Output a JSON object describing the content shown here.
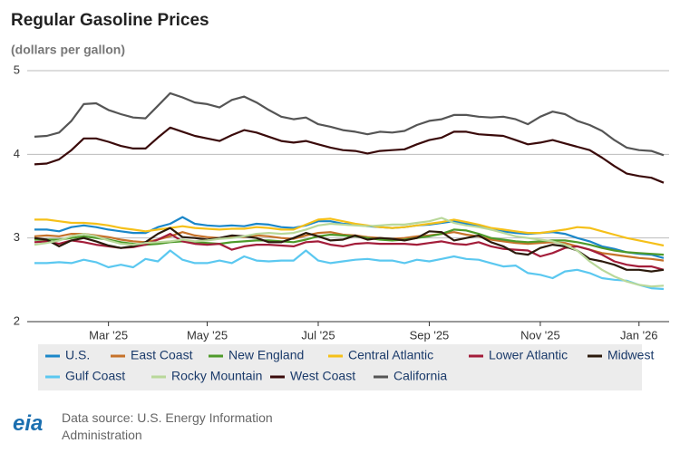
{
  "chart_data": {
    "type": "line",
    "title": "Regular Gasoline Prices",
    "subtitle": "(dollars per gallon)",
    "categories": [
      null,
      null,
      null,
      null,
      null,
      null,
      "Mar '25",
      null,
      null,
      null,
      null,
      null,
      null,
      null,
      "May '25",
      null,
      null,
      null,
      null,
      null,
      null,
      null,
      null,
      "Jul '25",
      null,
      null,
      null,
      null,
      null,
      null,
      null,
      null,
      "Sep '25",
      null,
      null,
      null,
      null,
      null,
      null,
      null,
      null,
      "Nov '25",
      null,
      null,
      null,
      null,
      null,
      null,
      null,
      "Jan '26",
      null,
      null
    ],
    "ylim": [
      2,
      5
    ],
    "yticks": [
      2,
      3,
      4,
      5
    ],
    "grid": true,
    "series": [
      {
        "name": "U.S.",
        "color": "#1b87c9",
        "values": [
          3.1,
          3.1,
          3.08,
          3.13,
          3.15,
          3.13,
          3.1,
          3.08,
          3.06,
          3.06,
          3.13,
          3.17,
          3.25,
          3.17,
          3.15,
          3.14,
          3.15,
          3.14,
          3.17,
          3.16,
          3.13,
          3.12,
          3.15,
          3.2,
          3.2,
          3.17,
          3.16,
          3.14,
          3.13,
          3.12,
          3.13,
          3.15,
          3.16,
          3.18,
          3.2,
          3.17,
          3.15,
          3.1,
          3.08,
          3.06,
          3.05,
          3.06,
          3.07,
          3.05,
          3.0,
          2.96,
          2.9,
          2.87,
          2.83,
          2.81,
          2.8,
          2.76
        ]
      },
      {
        "name": "East Coast",
        "color": "#c6722a",
        "values": [
          3.02,
          3.03,
          3.02,
          3.05,
          3.05,
          3.03,
          3.01,
          2.98,
          2.96,
          2.95,
          2.98,
          3.02,
          3.07,
          3.03,
          3.01,
          3.0,
          3.02,
          3.01,
          3.03,
          3.02,
          3.0,
          2.99,
          3.03,
          3.06,
          3.07,
          3.04,
          3.03,
          3.01,
          3.0,
          2.99,
          3.0,
          3.02,
          3.03,
          3.05,
          3.07,
          3.04,
          3.02,
          2.98,
          2.96,
          2.94,
          2.93,
          2.94,
          2.95,
          2.94,
          2.9,
          2.86,
          2.82,
          2.8,
          2.78,
          2.76,
          2.75,
          2.73
        ]
      },
      {
        "name": "New England",
        "color": "#4e9a2a",
        "values": [
          2.98,
          2.98,
          2.98,
          3.0,
          3.02,
          3.0,
          2.98,
          2.95,
          2.93,
          2.92,
          2.93,
          2.95,
          2.96,
          2.95,
          2.94,
          2.93,
          2.95,
          2.96,
          2.97,
          2.97,
          2.96,
          2.95,
          2.98,
          3.02,
          3.04,
          3.03,
          3.02,
          3.0,
          2.98,
          2.97,
          2.98,
          3.0,
          3.02,
          3.05,
          3.1,
          3.09,
          3.05,
          3.0,
          2.98,
          2.96,
          2.95,
          2.96,
          2.97,
          2.97,
          2.95,
          2.92,
          2.88,
          2.85,
          2.83,
          2.82,
          2.81,
          2.8
        ]
      },
      {
        "name": "Central Atlantic",
        "color": "#f5c019",
        "values": [
          3.22,
          3.22,
          3.2,
          3.18,
          3.18,
          3.17,
          3.15,
          3.12,
          3.1,
          3.08,
          3.1,
          3.12,
          3.14,
          3.12,
          3.11,
          3.1,
          3.11,
          3.11,
          3.13,
          3.12,
          3.1,
          3.1,
          3.16,
          3.22,
          3.23,
          3.2,
          3.17,
          3.15,
          3.13,
          3.12,
          3.13,
          3.15,
          3.17,
          3.19,
          3.22,
          3.19,
          3.16,
          3.12,
          3.1,
          3.08,
          3.06,
          3.06,
          3.08,
          3.1,
          3.13,
          3.12,
          3.08,
          3.04,
          3.0,
          2.97,
          2.94,
          2.91
        ]
      },
      {
        "name": "Lower Atlantic",
        "color": "#a31d3a",
        "values": [
          2.95,
          2.96,
          2.93,
          2.97,
          2.95,
          2.92,
          2.9,
          2.88,
          2.89,
          2.92,
          2.98,
          3.05,
          2.96,
          2.93,
          2.92,
          2.93,
          2.86,
          2.9,
          2.92,
          2.92,
          2.91,
          2.9,
          2.95,
          2.96,
          2.92,
          2.9,
          2.93,
          2.94,
          2.93,
          2.93,
          2.93,
          2.92,
          2.94,
          2.96,
          2.93,
          2.92,
          2.95,
          2.9,
          2.87,
          2.86,
          2.85,
          2.78,
          2.82,
          2.88,
          2.9,
          2.86,
          2.8,
          2.72,
          2.68,
          2.66,
          2.66,
          2.62
        ]
      },
      {
        "name": "Midwest",
        "color": "#2b1a0c",
        "values": [
          3.0,
          2.98,
          2.9,
          2.97,
          3.0,
          2.96,
          2.91,
          2.88,
          2.9,
          2.95,
          3.05,
          3.12,
          3.01,
          3.0,
          2.98,
          3.0,
          3.03,
          3.02,
          3.0,
          2.95,
          2.95,
          3.0,
          3.06,
          3.02,
          2.97,
          2.98,
          3.03,
          2.98,
          3.0,
          2.99,
          2.97,
          3.0,
          3.08,
          3.07,
          2.97,
          3.0,
          3.03,
          2.95,
          2.9,
          2.82,
          2.8,
          2.88,
          2.92,
          2.9,
          2.85,
          2.75,
          2.72,
          2.68,
          2.62,
          2.62,
          2.6,
          2.62
        ]
      },
      {
        "name": "Gulf Coast",
        "color": "#5bc8f0",
        "values": [
          2.7,
          2.7,
          2.71,
          2.7,
          2.74,
          2.71,
          2.65,
          2.68,
          2.65,
          2.75,
          2.72,
          2.85,
          2.74,
          2.7,
          2.7,
          2.73,
          2.7,
          2.78,
          2.73,
          2.72,
          2.73,
          2.73,
          2.85,
          2.73,
          2.7,
          2.72,
          2.74,
          2.75,
          2.73,
          2.73,
          2.7,
          2.74,
          2.72,
          2.75,
          2.78,
          2.75,
          2.74,
          2.7,
          2.66,
          2.67,
          2.58,
          2.56,
          2.52,
          2.6,
          2.62,
          2.58,
          2.52,
          2.5,
          2.49,
          2.44,
          2.4,
          2.39
        ]
      },
      {
        "name": "Rocky Mountain",
        "color": "#b9d89a",
        "values": [
          2.92,
          2.94,
          2.97,
          3.02,
          3.05,
          3.02,
          2.97,
          2.93,
          2.92,
          2.94,
          2.95,
          2.96,
          2.98,
          2.96,
          2.97,
          2.99,
          3.0,
          3.02,
          3.05,
          3.06,
          3.05,
          3.06,
          3.1,
          3.15,
          3.17,
          3.16,
          3.15,
          3.14,
          3.15,
          3.16,
          3.16,
          3.18,
          3.2,
          3.24,
          3.18,
          3.15,
          3.13,
          3.1,
          3.06,
          3.02,
          3.0,
          2.98,
          2.96,
          2.92,
          2.85,
          2.72,
          2.62,
          2.54,
          2.48,
          2.44,
          2.42,
          2.43
        ]
      },
      {
        "name": "West Coast",
        "color": "#3a0a0a",
        "values": [
          3.88,
          3.89,
          3.94,
          4.05,
          4.19,
          4.19,
          4.15,
          4.1,
          4.07,
          4.07,
          4.2,
          4.32,
          4.27,
          4.22,
          4.19,
          4.16,
          4.23,
          4.29,
          4.26,
          4.21,
          4.16,
          4.14,
          4.16,
          4.12,
          4.08,
          4.05,
          4.04,
          4.01,
          4.04,
          4.05,
          4.06,
          4.12,
          4.17,
          4.2,
          4.27,
          4.27,
          4.24,
          4.23,
          4.22,
          4.17,
          4.12,
          4.14,
          4.17,
          4.13,
          4.09,
          4.05,
          3.96,
          3.86,
          3.77,
          3.74,
          3.72,
          3.66
        ]
      },
      {
        "name": "California",
        "color": "#555555",
        "values": [
          4.21,
          4.22,
          4.26,
          4.4,
          4.6,
          4.61,
          4.53,
          4.48,
          4.44,
          4.43,
          4.58,
          4.73,
          4.68,
          4.62,
          4.6,
          4.56,
          4.65,
          4.69,
          4.62,
          4.53,
          4.45,
          4.42,
          4.44,
          4.36,
          4.33,
          4.29,
          4.27,
          4.24,
          4.27,
          4.26,
          4.28,
          4.35,
          4.4,
          4.42,
          4.47,
          4.47,
          4.45,
          4.44,
          4.45,
          4.42,
          4.36,
          4.45,
          4.51,
          4.48,
          4.4,
          4.35,
          4.28,
          4.17,
          4.08,
          4.05,
          4.04,
          3.99
        ]
      }
    ],
    "source": "Data source: U.S. Energy Information Administration",
    "logo": "eia"
  }
}
